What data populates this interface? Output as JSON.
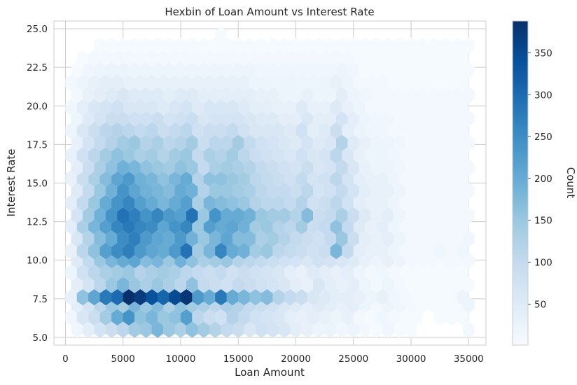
{
  "chart_data": {
    "type": "heatmap",
    "subtype": "hexbin",
    "title": "Hexbin of Loan Amount vs Interest Rate",
    "xlabel": "Loan Amount",
    "ylabel": "Interest Rate",
    "xlim": [
      -1000,
      36500
    ],
    "ylim": [
      4.5,
      25.5
    ],
    "xticks": [
      0,
      5000,
      10000,
      15000,
      20000,
      25000,
      30000,
      35000
    ],
    "xtick_labels": [
      "0",
      "5000",
      "10000",
      "15000",
      "20000",
      "25000",
      "30000",
      "35000"
    ],
    "yticks": [
      5.0,
      7.5,
      10.0,
      12.5,
      15.0,
      17.5,
      20.0,
      22.5,
      25.0
    ],
    "ytick_labels": [
      "5.0",
      "7.5",
      "10.0",
      "12.5",
      "15.0",
      "17.5",
      "20.0",
      "22.5",
      "25.0"
    ],
    "grid": true,
    "colormap": "Blues",
    "colorbar": {
      "label": "Count",
      "min": 1,
      "max": 388,
      "ticks": [
        50,
        100,
        150,
        200,
        250,
        300,
        350
      ],
      "tick_labels": [
        "50",
        "100",
        "150",
        "200",
        "250",
        "300",
        "350"
      ]
    },
    "hex_rows": [
      {
        "y": 5.5,
        "x0": 1000,
        "counts": [
          15,
          40,
          70,
          90,
          110,
          140,
          150,
          180,
          150,
          130,
          160,
          140,
          120,
          100,
          90,
          60,
          80,
          70,
          60,
          40,
          30,
          20,
          25,
          15,
          20,
          10,
          5,
          15,
          5,
          5,
          0,
          0,
          0,
          0,
          10
        ]
      },
      {
        "y": 6.3,
        "x0": 500,
        "counts": [
          15,
          60,
          90,
          140,
          200,
          240,
          160,
          180,
          150,
          160,
          220,
          110,
          90,
          80,
          120,
          100,
          80,
          70,
          60,
          40,
          30,
          40,
          30,
          20,
          30,
          10,
          5,
          15,
          10,
          5,
          5,
          0,
          5,
          5,
          5
        ]
      },
      {
        "y": 7.1,
        "x0": 1000,
        "counts": [
          40,
          70,
          110,
          150,
          140,
          180,
          150,
          170,
          130,
          160,
          140,
          130,
          110,
          130,
          120,
          100,
          90,
          80,
          60,
          50,
          40,
          50,
          40,
          30,
          40,
          20,
          10,
          20,
          15,
          10,
          5,
          5,
          5,
          5,
          20
        ]
      },
      {
        "y": 7.6,
        "x0": 500,
        "counts": [
          30,
          160,
          210,
          280,
          300,
          388,
          370,
          340,
          310,
          350,
          380,
          230,
          200,
          280,
          200,
          180,
          160,
          170,
          120,
          100,
          90,
          60,
          50,
          40,
          40,
          30,
          20,
          30,
          15,
          10,
          5,
          5,
          5,
          5,
          20
        ]
      },
      {
        "y": 8.4,
        "x0": 1000,
        "counts": [
          40,
          70,
          110,
          150,
          180,
          150,
          130,
          150,
          130,
          110,
          160,
          100,
          90,
          80,
          100,
          90,
          80,
          70,
          60,
          40,
          30,
          60,
          40,
          30,
          40,
          20,
          10,
          20,
          10,
          5,
          5,
          5,
          5,
          5,
          5
        ]
      },
      {
        "y": 9.2,
        "x0": 500,
        "counts": [
          20,
          80,
          110,
          130,
          140,
          150,
          120,
          130,
          140,
          130,
          110,
          100,
          90,
          100,
          80,
          90,
          80,
          70,
          60,
          40,
          30,
          50,
          40,
          30,
          40,
          20,
          10,
          15,
          10,
          5,
          5,
          5,
          5,
          5,
          5
        ]
      },
      {
        "y": 10.0,
        "x0": 1000,
        "counts": [
          50,
          100,
          150,
          180,
          200,
          210,
          170,
          180,
          150,
          190,
          160,
          130,
          140,
          150,
          120,
          110,
          100,
          90,
          80,
          70,
          60,
          80,
          70,
          60,
          50,
          30,
          20,
          30,
          20,
          10,
          10,
          10,
          10,
          10,
          10
        ]
      },
      {
        "y": 10.6,
        "x0": 500,
        "counts": [
          30,
          110,
          160,
          220,
          250,
          270,
          230,
          210,
          200,
          230,
          290,
          140,
          180,
          260,
          200,
          190,
          140,
          150,
          110,
          100,
          90,
          80,
          90,
          180,
          100,
          40,
          30,
          30,
          20,
          10,
          10,
          10,
          15,
          10,
          15
        ]
      },
      {
        "y": 11.4,
        "x0": 1000,
        "counts": [
          60,
          120,
          170,
          200,
          250,
          270,
          230,
          210,
          200,
          230,
          190,
          150,
          180,
          210,
          170,
          170,
          130,
          140,
          120,
          100,
          90,
          80,
          100,
          150,
          90,
          40,
          30,
          40,
          20,
          10,
          10,
          10,
          10,
          10,
          15
        ]
      },
      {
        "y": 12.2,
        "x0": 500,
        "counts": [
          40,
          130,
          180,
          220,
          260,
          280,
          260,
          250,
          210,
          240,
          260,
          150,
          220,
          200,
          210,
          190,
          140,
          150,
          120,
          110,
          140,
          90,
          100,
          160,
          100,
          50,
          30,
          40,
          20,
          10,
          10,
          10,
          10,
          10,
          10
        ]
      },
      {
        "y": 12.9,
        "x0": 1000,
        "counts": [
          70,
          140,
          190,
          240,
          290,
          270,
          240,
          260,
          230,
          220,
          290,
          150,
          240,
          200,
          200,
          190,
          150,
          140,
          140,
          120,
          170,
          90,
          100,
          130,
          90,
          50,
          30,
          40,
          20,
          10,
          10,
          10,
          10,
          10,
          10
        ]
      },
      {
        "y": 13.7,
        "x0": 500,
        "counts": [
          40,
          100,
          150,
          200,
          240,
          260,
          220,
          200,
          180,
          200,
          220,
          130,
          180,
          170,
          160,
          150,
          120,
          110,
          110,
          100,
          120,
          80,
          90,
          110,
          80,
          40,
          30,
          30,
          20,
          10,
          10,
          10,
          10,
          10,
          10
        ]
      },
      {
        "y": 14.5,
        "x0": 1000,
        "counts": [
          50,
          100,
          150,
          190,
          240,
          210,
          190,
          180,
          170,
          200,
          190,
          120,
          150,
          150,
          140,
          130,
          110,
          100,
          100,
          90,
          110,
          70,
          80,
          100,
          70,
          40,
          30,
          30,
          20,
          10,
          10,
          10,
          10,
          10,
          10
        ]
      },
      {
        "y": 15.3,
        "x0": 500,
        "counts": [
          30,
          90,
          130,
          170,
          210,
          230,
          190,
          180,
          160,
          180,
          200,
          120,
          160,
          160,
          150,
          140,
          110,
          100,
          90,
          80,
          100,
          70,
          80,
          110,
          70,
          40,
          30,
          30,
          20,
          10,
          10,
          10,
          10,
          10,
          10
        ]
      },
      {
        "y": 16.0,
        "x0": 1000,
        "counts": [
          40,
          90,
          130,
          160,
          190,
          180,
          160,
          150,
          140,
          160,
          150,
          100,
          130,
          140,
          130,
          120,
          100,
          90,
          80,
          70,
          90,
          60,
          70,
          100,
          60,
          30,
          20,
          20,
          15,
          10,
          10,
          10,
          10,
          10,
          10
        ]
      },
      {
        "y": 16.8,
        "x0": 500,
        "counts": [
          30,
          80,
          110,
          140,
          160,
          150,
          130,
          140,
          120,
          140,
          150,
          100,
          130,
          120,
          140,
          110,
          90,
          80,
          70,
          60,
          80,
          60,
          70,
          110,
          60,
          30,
          20,
          20,
          15,
          10,
          10,
          10,
          10,
          10,
          10
        ]
      },
      {
        "y": 17.6,
        "x0": 1000,
        "counts": [
          30,
          70,
          100,
          120,
          140,
          150,
          120,
          130,
          110,
          120,
          140,
          90,
          110,
          110,
          140,
          100,
          80,
          70,
          60,
          50,
          70,
          50,
          60,
          120,
          50,
          30,
          20,
          20,
          15,
          10,
          10,
          10,
          10,
          10,
          10
        ]
      },
      {
        "y": 18.4,
        "x0": 500,
        "counts": [
          20,
          60,
          90,
          110,
          120,
          110,
          100,
          110,
          90,
          100,
          110,
          80,
          90,
          90,
          100,
          80,
          60,
          60,
          60,
          50,
          80,
          40,
          50,
          90,
          40,
          25,
          15,
          15,
          10,
          10,
          10,
          10,
          10,
          10,
          10
        ]
      },
      {
        "y": 19.2,
        "x0": 1000,
        "counts": [
          20,
          50,
          70,
          90,
          90,
          80,
          80,
          90,
          70,
          80,
          90,
          60,
          70,
          70,
          70,
          60,
          50,
          50,
          40,
          40,
          60,
          40,
          40,
          70,
          40,
          20,
          15,
          15,
          10,
          10,
          10,
          10,
          10,
          10,
          10
        ]
      },
      {
        "y": 19.9,
        "x0": 500,
        "counts": [
          15,
          40,
          60,
          70,
          80,
          60,
          60,
          60,
          50,
          60,
          70,
          50,
          60,
          60,
          60,
          50,
          40,
          40,
          30,
          30,
          50,
          30,
          30,
          50,
          30,
          20,
          10,
          10,
          10,
          10,
          10,
          10,
          10,
          10,
          10
        ]
      },
      {
        "y": 20.7,
        "x0": 1000,
        "counts": [
          10,
          30,
          40,
          50,
          60,
          50,
          50,
          50,
          40,
          50,
          50,
          40,
          40,
          40,
          40,
          40,
          30,
          30,
          20,
          20,
          30,
          20,
          20,
          40,
          20,
          15,
          10,
          10,
          10,
          10,
          10,
          10,
          10,
          10,
          10
        ]
      },
      {
        "y": 21.5,
        "x0": 500,
        "counts": [
          10,
          20,
          30,
          40,
          40,
          30,
          30,
          30,
          30,
          30,
          30,
          30,
          30,
          30,
          30,
          30,
          20,
          20,
          20,
          20,
          20,
          20,
          20,
          30,
          20,
          10,
          10,
          10,
          5,
          5,
          5,
          5,
          5,
          5,
          5
        ]
      },
      {
        "y": 22.3,
        "x0": 1000,
        "counts": [
          5,
          15,
          20,
          25,
          25,
          20,
          20,
          20,
          20,
          20,
          20,
          20,
          20,
          20,
          20,
          20,
          15,
          15,
          15,
          15,
          15,
          15,
          15,
          20,
          15,
          5,
          5,
          5,
          5,
          5,
          5,
          5,
          5,
          5,
          5
        ]
      },
      {
        "y": 23.1,
        "x0": 500,
        "counts": [
          0,
          5,
          10,
          10,
          10,
          10,
          10,
          10,
          10,
          10,
          10,
          10,
          10,
          10,
          10,
          10,
          10,
          10,
          10,
          10,
          10,
          10,
          10,
          10,
          10,
          5,
          5,
          5,
          5,
          5,
          5,
          5,
          5,
          5,
          5
        ]
      },
      {
        "y": 23.9,
        "x0": 1000,
        "counts": [
          0,
          0,
          5,
          5,
          5,
          5,
          5,
          5,
          5,
          5,
          5,
          5,
          5,
          5,
          5,
          5,
          5,
          5,
          5,
          5,
          5,
          5,
          5,
          5,
          5,
          5,
          5,
          5,
          5,
          5,
          5,
          5,
          5,
          5,
          5
        ]
      },
      {
        "y": 24.6,
        "x0": 500,
        "counts": [
          0,
          0,
          0,
          0,
          0,
          0,
          0,
          0,
          0,
          0,
          0,
          0,
          0,
          5,
          0,
          0,
          0,
          0,
          0,
          0,
          0,
          0,
          0,
          0,
          0,
          0,
          0,
          0,
          0,
          0,
          0,
          0,
          0,
          0,
          0
        ]
      }
    ],
    "hex_step_x": 1000
  }
}
